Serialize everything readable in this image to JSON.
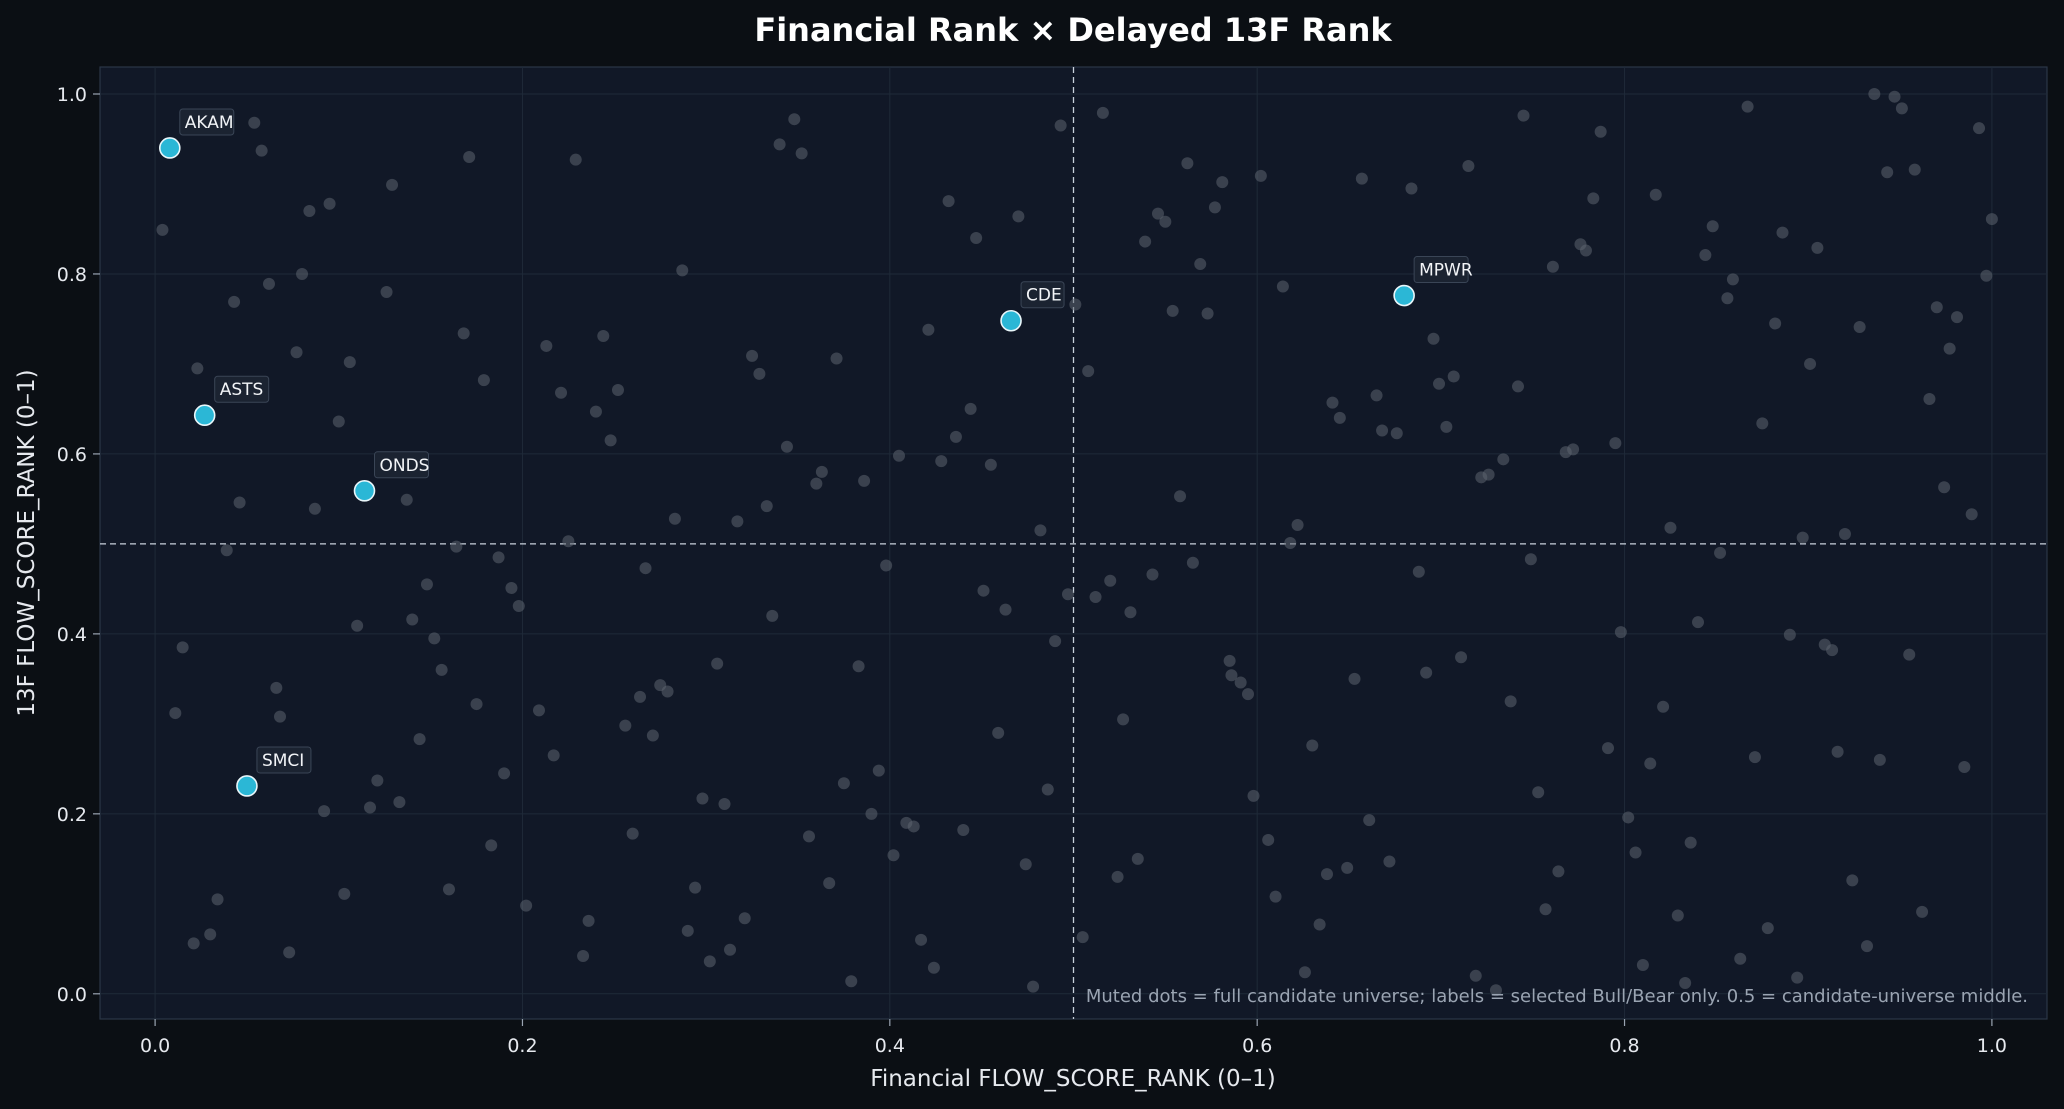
{
  "chart_data": {
    "type": "scatter",
    "title": "Financial Rank × Delayed 13F Rank",
    "xlabel": "Financial FLOW_SCORE_RANK (0–1)",
    "ylabel": "13F FLOW_SCORE_RANK (0–1)",
    "xlim": [
      -0.03,
      1.03
    ],
    "ylim": [
      -0.028,
      1.03
    ],
    "xticks": [
      0.0,
      0.2,
      0.4,
      0.6,
      0.8,
      1.0
    ],
    "xtick_labels": [
      "0.0",
      "0.2",
      "0.4",
      "0.6",
      "0.8",
      "1.0"
    ],
    "yticks": [
      0.0,
      0.2,
      0.4,
      0.6,
      0.8,
      1.0
    ],
    "ytick_labels": [
      "0.0",
      "0.2",
      "0.4",
      "0.6",
      "0.8",
      "1.0"
    ],
    "grid": true,
    "reference_lines": {
      "x": 0.5,
      "y": 0.5
    },
    "note": "Muted dots = full candidate universe; labels = selected Bull/Bear only. 0.5 = candidate-universe middle.",
    "colors": {
      "background": "#0b0f14",
      "plot_background": "#111827",
      "universe_point": "#5c6470",
      "selected_point": "#2bb7d6"
    },
    "selected": [
      {
        "label": "AKAM",
        "x": 0.008,
        "y": 0.94
      },
      {
        "label": "ASTS",
        "x": 0.027,
        "y": 0.643
      },
      {
        "label": "ONDS",
        "x": 0.114,
        "y": 0.559
      },
      {
        "label": "SMCI",
        "x": 0.05,
        "y": 0.231
      },
      {
        "label": "CDE",
        "x": 0.466,
        "y": 0.748
      },
      {
        "label": "MPWR",
        "x": 0.68,
        "y": 0.776
      }
    ],
    "universe": [
      [
        0.004,
        0.849
      ],
      [
        0.054,
        0.968
      ],
      [
        0.058,
        0.937
      ],
      [
        0.043,
        0.769
      ],
      [
        0.062,
        0.789
      ],
      [
        0.08,
        0.8
      ],
      [
        0.084,
        0.87
      ],
      [
        0.095,
        0.878
      ],
      [
        0.077,
        0.713
      ],
      [
        0.023,
        0.695
      ],
      [
        0.106,
        0.702
      ],
      [
        0.1,
        0.636
      ],
      [
        0.046,
        0.546
      ],
      [
        0.087,
        0.539
      ],
      [
        0.039,
        0.493
      ],
      [
        0.015,
        0.385
      ],
      [
        0.011,
        0.312
      ],
      [
        0.066,
        0.34
      ],
      [
        0.068,
        0.308
      ],
      [
        0.092,
        0.203
      ],
      [
        0.021,
        0.056
      ],
      [
        0.03,
        0.066
      ],
      [
        0.034,
        0.105
      ],
      [
        0.073,
        0.046
      ],
      [
        0.103,
        0.111
      ],
      [
        0.11,
        0.409
      ],
      [
        0.117,
        0.207
      ],
      [
        0.121,
        0.237
      ],
      [
        0.126,
        0.78
      ],
      [
        0.129,
        0.899
      ],
      [
        0.133,
        0.213
      ],
      [
        0.137,
        0.549
      ],
      [
        0.14,
        0.416
      ],
      [
        0.144,
        0.283
      ],
      [
        0.148,
        0.455
      ],
      [
        0.152,
        0.395
      ],
      [
        0.156,
        0.36
      ],
      [
        0.16,
        0.116
      ],
      [
        0.164,
        0.497
      ],
      [
        0.168,
        0.734
      ],
      [
        0.171,
        0.93
      ],
      [
        0.175,
        0.322
      ],
      [
        0.179,
        0.682
      ],
      [
        0.183,
        0.165
      ],
      [
        0.187,
        0.485
      ],
      [
        0.19,
        0.245
      ],
      [
        0.194,
        0.451
      ],
      [
        0.198,
        0.431
      ],
      [
        0.202,
        0.098
      ],
      [
        0.209,
        0.315
      ],
      [
        0.213,
        0.72
      ],
      [
        0.217,
        0.265
      ],
      [
        0.221,
        0.668
      ],
      [
        0.225,
        0.503
      ],
      [
        0.229,
        0.927
      ],
      [
        0.233,
        0.042
      ],
      [
        0.236,
        0.081
      ],
      [
        0.24,
        0.647
      ],
      [
        0.244,
        0.731
      ],
      [
        0.248,
        0.615
      ],
      [
        0.252,
        0.671
      ],
      [
        0.256,
        0.298
      ],
      [
        0.26,
        0.178
      ],
      [
        0.264,
        0.33
      ],
      [
        0.267,
        0.473
      ],
      [
        0.271,
        0.287
      ],
      [
        0.275,
        0.343
      ],
      [
        0.279,
        0.336
      ],
      [
        0.283,
        0.528
      ],
      [
        0.287,
        0.804
      ],
      [
        0.29,
        0.07
      ],
      [
        0.294,
        0.118
      ],
      [
        0.298,
        0.217
      ],
      [
        0.302,
        0.036
      ],
      [
        0.306,
        0.367
      ],
      [
        0.31,
        0.211
      ],
      [
        0.313,
        0.049
      ],
      [
        0.317,
        0.525
      ],
      [
        0.321,
        0.084
      ],
      [
        0.325,
        0.709
      ],
      [
        0.329,
        0.689
      ],
      [
        0.333,
        0.542
      ],
      [
        0.336,
        0.42
      ],
      [
        0.34,
        0.944
      ],
      [
        0.344,
        0.608
      ],
      [
        0.348,
        0.972
      ],
      [
        0.352,
        0.934
      ],
      [
        0.356,
        0.175
      ],
      [
        0.36,
        0.567
      ],
      [
        0.363,
        0.58
      ],
      [
        0.367,
        0.123
      ],
      [
        0.371,
        0.706
      ],
      [
        0.375,
        0.234
      ],
      [
        0.379,
        0.014
      ],
      [
        0.383,
        0.364
      ],
      [
        0.386,
        0.57
      ],
      [
        0.39,
        0.2
      ],
      [
        0.394,
        0.248
      ],
      [
        0.398,
        0.476
      ],
      [
        0.402,
        0.154
      ],
      [
        0.405,
        0.598
      ],
      [
        0.409,
        0.19
      ],
      [
        0.413,
        0.186
      ],
      [
        0.417,
        0.06
      ],
      [
        0.421,
        0.738
      ],
      [
        0.424,
        0.029
      ],
      [
        0.428,
        0.592
      ],
      [
        0.432,
        0.881
      ],
      [
        0.436,
        0.619
      ],
      [
        0.44,
        0.182
      ],
      [
        0.444,
        0.65
      ],
      [
        0.447,
        0.84
      ],
      [
        0.451,
        0.448
      ],
      [
        0.455,
        0.588
      ],
      [
        0.459,
        0.29
      ],
      [
        0.463,
        0.427
      ],
      [
        0.47,
        0.864
      ],
      [
        0.474,
        0.144
      ],
      [
        0.478,
        0.008
      ],
      [
        0.482,
        0.515
      ],
      [
        0.486,
        0.227
      ],
      [
        0.49,
        0.392
      ],
      [
        0.493,
        0.965
      ],
      [
        0.497,
        0.444
      ],
      [
        0.501,
        0.766
      ],
      [
        0.505,
        0.063
      ],
      [
        0.508,
        0.692
      ],
      [
        0.512,
        0.441
      ],
      [
        0.516,
        0.979
      ],
      [
        0.52,
        0.459
      ],
      [
        0.524,
        0.13
      ],
      [
        0.527,
        0.305
      ],
      [
        0.531,
        0.424
      ],
      [
        0.535,
        0.15
      ],
      [
        0.539,
        0.836
      ],
      [
        0.543,
        0.466
      ],
      [
        0.546,
        0.867
      ],
      [
        0.55,
        0.858
      ],
      [
        0.554,
        0.759
      ],
      [
        0.558,
        0.553
      ],
      [
        0.562,
        0.923
      ],
      [
        0.565,
        0.479
      ],
      [
        0.569,
        0.811
      ],
      [
        0.573,
        0.756
      ],
      [
        0.577,
        0.874
      ],
      [
        0.581,
        0.902
      ],
      [
        0.585,
        0.37
      ],
      [
        0.586,
        0.354
      ],
      [
        0.591,
        0.346
      ],
      [
        0.595,
        0.333
      ],
      [
        0.598,
        0.22
      ],
      [
        0.602,
        0.909
      ],
      [
        0.606,
        0.171
      ],
      [
        0.61,
        0.108
      ],
      [
        0.614,
        0.786
      ],
      [
        0.618,
        0.501
      ],
      [
        0.622,
        0.521
      ],
      [
        0.626,
        0.024
      ],
      [
        0.63,
        0.276
      ],
      [
        0.634,
        0.077
      ],
      [
        0.638,
        0.133
      ],
      [
        0.641,
        0.657
      ],
      [
        0.645,
        0.64
      ],
      [
        0.649,
        0.14
      ],
      [
        0.653,
        0.35
      ],
      [
        0.657,
        0.906
      ],
      [
        0.661,
        0.193
      ],
      [
        0.665,
        0.665
      ],
      [
        0.668,
        0.626
      ],
      [
        0.672,
        0.147
      ],
      [
        0.676,
        0.623
      ],
      [
        0.684,
        0.895
      ],
      [
        0.688,
        0.469
      ],
      [
        0.692,
        0.357
      ],
      [
        0.696,
        0.728
      ],
      [
        0.699,
        0.678
      ],
      [
        0.703,
        0.63
      ],
      [
        0.707,
        0.686
      ],
      [
        0.711,
        0.374
      ],
      [
        0.715,
        0.92
      ],
      [
        0.719,
        0.02
      ],
      [
        0.722,
        0.574
      ],
      [
        0.726,
        0.577
      ],
      [
        0.73,
        0.004
      ],
      [
        0.734,
        0.594
      ],
      [
        0.738,
        0.325
      ],
      [
        0.742,
        0.675
      ],
      [
        0.745,
        0.976
      ],
      [
        0.749,
        0.483
      ],
      [
        0.753,
        0.224
      ],
      [
        0.757,
        0.094
      ],
      [
        0.761,
        0.808
      ],
      [
        0.764,
        0.136
      ],
      [
        0.768,
        0.602
      ],
      [
        0.772,
        0.605
      ],
      [
        0.776,
        0.833
      ],
      [
        0.779,
        0.826
      ],
      [
        0.783,
        0.884
      ],
      [
        0.787,
        0.958
      ],
      [
        0.791,
        0.273
      ],
      [
        0.795,
        0.612
      ],
      [
        0.798,
        0.402
      ],
      [
        0.802,
        0.196
      ],
      [
        0.806,
        0.157
      ],
      [
        0.81,
        0.032
      ],
      [
        0.814,
        0.256
      ],
      [
        0.817,
        0.888
      ],
      [
        0.821,
        0.319
      ],
      [
        0.825,
        0.518
      ],
      [
        0.829,
        0.087
      ],
      [
        0.833,
        0.012
      ],
      [
        0.836,
        0.168
      ],
      [
        0.84,
        0.413
      ],
      [
        0.844,
        0.821
      ],
      [
        0.848,
        0.853
      ],
      [
        0.852,
        0.49
      ],
      [
        0.856,
        0.773
      ],
      [
        0.859,
        0.794
      ],
      [
        0.863,
        0.039
      ],
      [
        0.867,
        0.986
      ],
      [
        0.871,
        0.263
      ],
      [
        0.875,
        0.634
      ],
      [
        0.878,
        0.073
      ],
      [
        0.882,
        0.745
      ],
      [
        0.886,
        0.846
      ],
      [
        0.89,
        0.399
      ],
      [
        0.894,
        0.018
      ],
      [
        0.897,
        0.507
      ],
      [
        0.901,
        0.7
      ],
      [
        0.905,
        0.829
      ],
      [
        0.909,
        0.388
      ],
      [
        0.913,
        0.382
      ],
      [
        0.916,
        0.269
      ],
      [
        0.92,
        0.511
      ],
      [
        0.924,
        0.126
      ],
      [
        0.928,
        0.741
      ],
      [
        0.932,
        0.053
      ],
      [
        0.936,
        1.0
      ],
      [
        0.939,
        0.26
      ],
      [
        0.943,
        0.913
      ],
      [
        0.947,
        0.997
      ],
      [
        0.951,
        0.984
      ],
      [
        0.955,
        0.377
      ],
      [
        0.958,
        0.916
      ],
      [
        0.962,
        0.091
      ],
      [
        0.966,
        0.661
      ],
      [
        0.97,
        0.763
      ],
      [
        0.974,
        0.563
      ],
      [
        0.977,
        0.717
      ],
      [
        0.981,
        0.752
      ],
      [
        0.985,
        0.252
      ],
      [
        0.989,
        0.533
      ],
      [
        0.993,
        0.962
      ],
      [
        0.997,
        0.798
      ],
      [
        1.0,
        0.861
      ]
    ]
  }
}
